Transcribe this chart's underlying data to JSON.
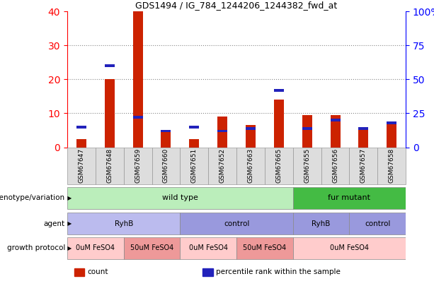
{
  "title": "GDS1494 / IG_784_1244206_1244382_fwd_at",
  "samples": [
    "GSM67647",
    "GSM67648",
    "GSM67659",
    "GSM67660",
    "GSM67651",
    "GSM67652",
    "GSM67663",
    "GSM67665",
    "GSM67655",
    "GSM67656",
    "GSM67657",
    "GSM67658"
  ],
  "count_values": [
    2.5,
    20.0,
    40.0,
    4.5,
    2.5,
    9.0,
    6.5,
    14.0,
    9.5,
    9.5,
    5.5,
    7.0
  ],
  "percentile_values_pct": [
    15.0,
    60.0,
    22.0,
    12.0,
    15.0,
    12.0,
    14.0,
    42.0,
    14.0,
    20.0,
    14.0,
    18.0
  ],
  "ylim_left": [
    0,
    40
  ],
  "ylim_right": [
    0,
    100
  ],
  "yticks_left": [
    0,
    10,
    20,
    30,
    40
  ],
  "yticks_right": [
    0,
    25,
    50,
    75,
    100
  ],
  "count_color": "#cc2200",
  "percentile_color": "#2222bb",
  "grid_color": "#888888",
  "row_genotype_labels": [
    {
      "label": "wild type",
      "start": 0,
      "end": 8,
      "color": "#bbeebb"
    },
    {
      "label": "fur mutant",
      "start": 8,
      "end": 12,
      "color": "#44bb44"
    }
  ],
  "row_agent_labels": [
    {
      "label": "RyhB",
      "start": 0,
      "end": 4,
      "color": "#bbbbee"
    },
    {
      "label": "control",
      "start": 4,
      "end": 8,
      "color": "#9999dd"
    },
    {
      "label": "RyhB",
      "start": 8,
      "end": 10,
      "color": "#9999dd"
    },
    {
      "label": "control",
      "start": 10,
      "end": 12,
      "color": "#9999dd"
    }
  ],
  "row_growth_labels": [
    {
      "label": "0uM FeSO4",
      "start": 0,
      "end": 2,
      "color": "#ffcccc"
    },
    {
      "label": "50uM FeSO4",
      "start": 2,
      "end": 4,
      "color": "#ee9999"
    },
    {
      "label": "0uM FeSO4",
      "start": 4,
      "end": 6,
      "color": "#ffcccc"
    },
    {
      "label": "50uM FeSO4",
      "start": 6,
      "end": 8,
      "color": "#ee9999"
    },
    {
      "label": "0uM FeSO4",
      "start": 8,
      "end": 12,
      "color": "#ffcccc"
    }
  ],
  "row_labels": [
    "genotype/variation",
    "agent",
    "growth protocol"
  ],
  "legend_items": [
    {
      "label": "count",
      "color": "#cc2200"
    },
    {
      "label": "percentile rank within the sample",
      "color": "#2222bb"
    }
  ]
}
